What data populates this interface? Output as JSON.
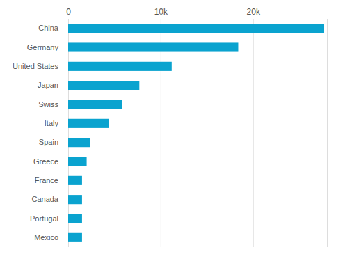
{
  "chart_data": {
    "type": "bar",
    "orientation": "horizontal",
    "categories": [
      "China",
      "Germany",
      "United States",
      "Japan",
      "Swiss",
      "Italy",
      "Spain",
      "Greece",
      "France",
      "Canada",
      "Portugal",
      "Mexico"
    ],
    "values": [
      27700,
      18400,
      11200,
      7700,
      5800,
      4400,
      2400,
      2000,
      1500,
      1500,
      1500,
      1500
    ],
    "color": "#0aa3cf",
    "xlim": [
      0,
      28000
    ],
    "xticks": [
      0,
      {
        "value": 10000,
        "label": "10k"
      },
      {
        "value": 20000,
        "label": "20k"
      }
    ],
    "grid": true
  }
}
